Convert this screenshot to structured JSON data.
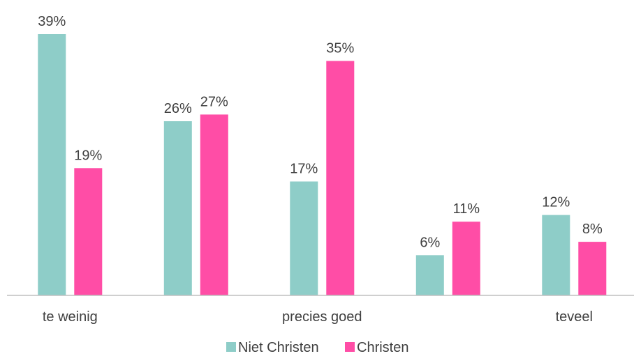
{
  "chart_data": {
    "type": "bar",
    "title": "",
    "xlabel": "",
    "ylabel": "",
    "categories": [
      "te weinig",
      "",
      "precies goed",
      "",
      "teveel"
    ],
    "series": [
      {
        "name": "Niet Christen",
        "color": "#8ecdc8",
        "values": [
          39,
          26,
          17,
          6,
          12
        ],
        "labels": [
          "39%",
          "26%",
          "17%",
          "6%",
          "12%"
        ]
      },
      {
        "name": "Christen",
        "color": "#ff4da6",
        "values": [
          19,
          27,
          35,
          11,
          8
        ],
        "labels": [
          "19%",
          "27%",
          "35%",
          "11%",
          "8%"
        ]
      }
    ],
    "ylim": [
      0,
      39
    ],
    "grid": false,
    "legend_position": "bottom"
  }
}
